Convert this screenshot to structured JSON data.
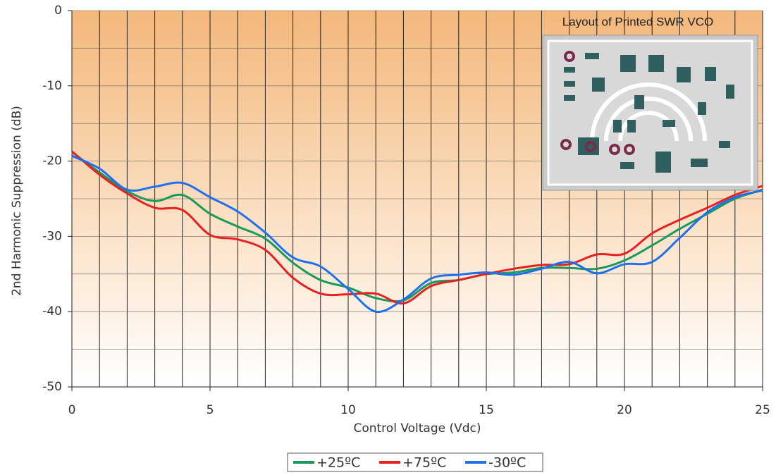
{
  "chart_data": {
    "type": "line",
    "x_label": "Control Voltage (Vdc)",
    "y_label": "2nd Harmonic Suppression (dB)",
    "inset_title": "Layout of Printed SWR VCO",
    "x": [
      0,
      1,
      2,
      3,
      4,
      5,
      6,
      7,
      8,
      9,
      10,
      11,
      12,
      13,
      14,
      15,
      16,
      17,
      18,
      19,
      20,
      21,
      22,
      23,
      24,
      25
    ],
    "series": [
      {
        "name": "+25ºC",
        "color": "#1a9a5a",
        "values": [
          -18.8,
          -21.5,
          -24,
          -25.3,
          -24.5,
          -27,
          -28.7,
          -30.3,
          -33.5,
          -35.8,
          -36.8,
          -38.2,
          -38.5,
          -36.2,
          -35.8,
          -35,
          -34.8,
          -34.2,
          -34.2,
          -34.3,
          -33.2,
          -31.2,
          -29,
          -27,
          -25,
          -23.8
        ]
      },
      {
        "name": "+75ºC",
        "color": "#e82020",
        "values": [
          -18.7,
          -21.8,
          -24.3,
          -26.2,
          -26.5,
          -29.8,
          -30.4,
          -31.8,
          -35.5,
          -37.6,
          -37.7,
          -37.6,
          -38.9,
          -36.6,
          -35.8,
          -35,
          -34.3,
          -33.8,
          -33.7,
          -32.4,
          -32.3,
          -29.6,
          -27.8,
          -26.2,
          -24.5,
          -23.3
        ]
      },
      {
        "name": "-30ºC",
        "color": "#1f6fef",
        "values": [
          -19.3,
          -21,
          -23.8,
          -23.4,
          -22.9,
          -24.8,
          -26.7,
          -29.5,
          -32.8,
          -34,
          -37,
          -40,
          -38.4,
          -35.6,
          -35.1,
          -34.8,
          -35.1,
          -34.3,
          -33.4,
          -34.9,
          -33.7,
          -33.4,
          -30.2,
          -26.8,
          -24.8,
          -23.9
        ]
      }
    ],
    "xlim": [
      0,
      25
    ],
    "xticks": [
      0,
      5,
      10,
      15,
      20,
      25
    ],
    "ylim": [
      -50,
      0
    ],
    "yticks": [
      -50,
      -40,
      -30,
      -20,
      -10,
      0
    ],
    "x_grid": [
      0,
      1,
      2,
      3,
      4,
      5,
      6,
      7,
      8,
      9,
      10,
      11,
      12,
      13,
      14,
      15,
      16,
      17,
      18,
      19,
      20,
      21,
      22,
      23,
      24,
      25
    ],
    "y_grid": [
      -50,
      -45,
      -40,
      -35,
      -30,
      -25,
      -20,
      -15,
      -10,
      -5,
      0
    ],
    "legend": "bottom"
  }
}
